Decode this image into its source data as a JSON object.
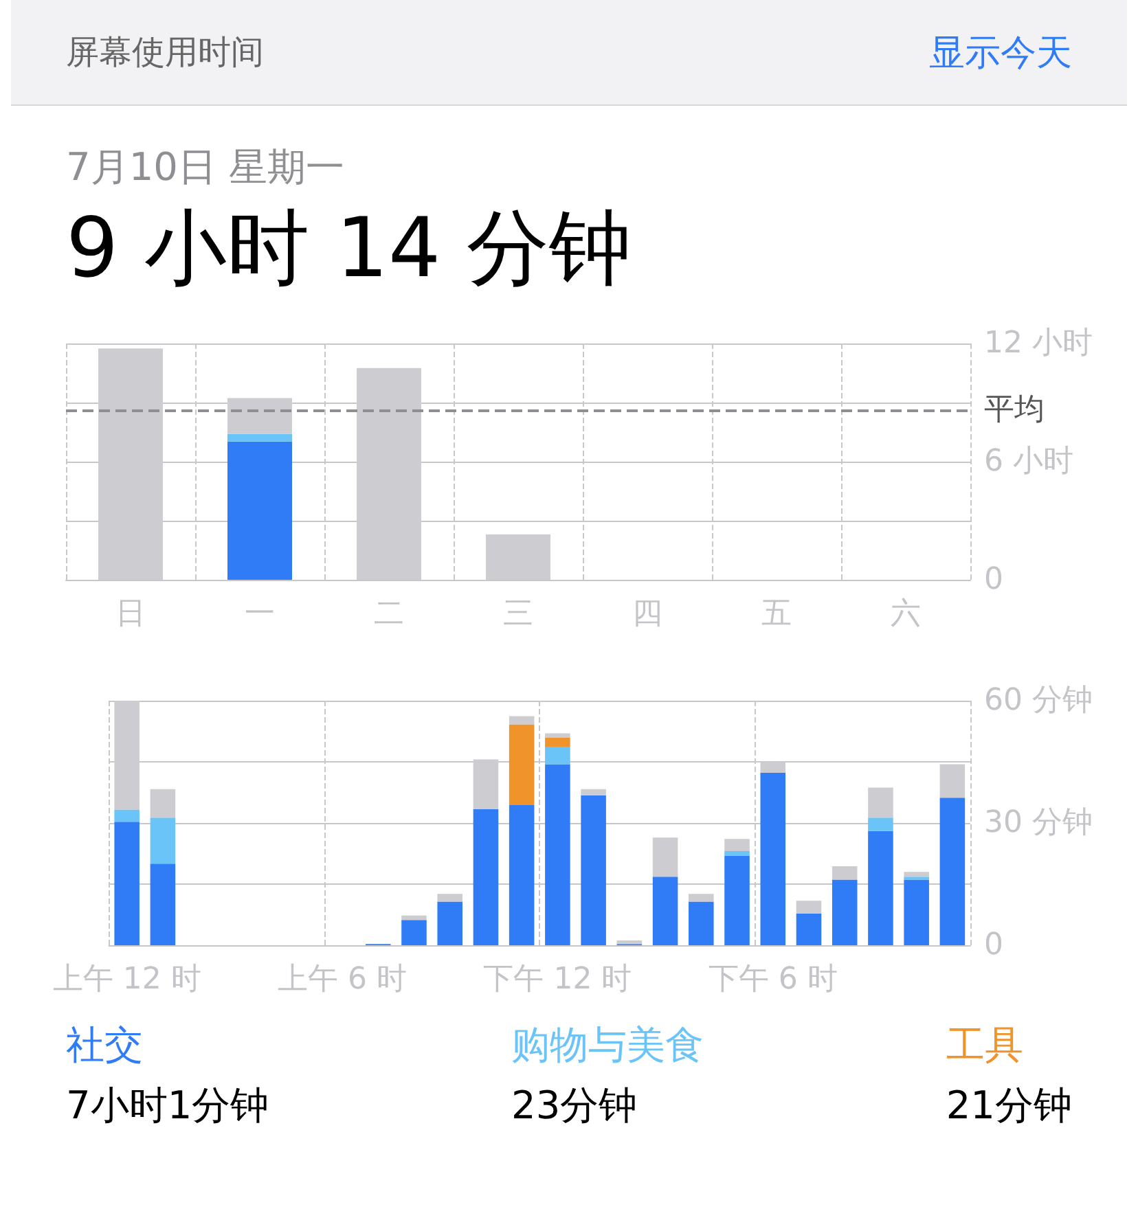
{
  "chart_data": [
    {
      "type": "bar",
      "title": "屏幕使用时间",
      "subtitle": "7月10日 星期一",
      "annotations": [
        "显示今天",
        "9 小时 14 分钟"
      ],
      "categories": [
        "日",
        "一",
        "二",
        "三",
        "四",
        "五",
        "六"
      ],
      "stacked": true,
      "series": [
        {
          "color": "#2f7cf6",
          "values": [
            null,
            7.02,
            null,
            null,
            null,
            null,
            null
          ]
        },
        {
          "color": "#6ac4f8",
          "values": [
            null,
            0.38,
            null,
            null,
            null,
            null,
            null
          ]
        },
        {
          "color": "#cdcdd1",
          "values": [
            11.75,
            1.83,
            10.75,
            2.3,
            null,
            null,
            null
          ]
        }
      ],
      "ylim": [
        0,
        12
      ],
      "yticks": [
        0,
        {
          "value": 3,
          "label": null
        },
        {
          "value": 6,
          "label": "6 小时"
        },
        {
          "value": 9,
          "label": null
        },
        {
          "value": 12,
          "label": "12 小时"
        }
      ],
      "ref_lines": [
        {
          "axis": "y",
          "value": 8.6,
          "label": "平均",
          "color": "#8e8e93",
          "line_style": "dashed"
        }
      ],
      "grid": true,
      "legend": false
    },
    {
      "type": "bar",
      "categories": [
        "上午 12 时",
        null,
        null,
        null,
        null,
        null,
        "上午 6 时",
        null,
        null,
        null,
        null,
        null,
        "下午 12 时",
        null,
        null,
        null,
        null,
        null,
        "下午 6 时",
        null,
        null,
        null,
        null,
        null
      ],
      "stacked": true,
      "series": [
        {
          "name": "社交",
          "color": "#2f7cf6",
          "values": [
            30.3,
            20,
            0,
            0,
            0,
            0,
            0,
            0.3,
            6.2,
            10.7,
            33.4,
            34.4,
            44.4,
            36.8,
            0.3,
            16.8,
            10.7,
            22,
            42.3,
            7.8,
            16.1,
            28,
            16.1,
            36.2
          ]
        },
        {
          "name": "购物与美食",
          "color": "#6ac4f8",
          "values": [
            3,
            11.3,
            0,
            0,
            0,
            0,
            0,
            0,
            0,
            0,
            0,
            0,
            4.3,
            0,
            0,
            0,
            0,
            1.1,
            0,
            0,
            0,
            3.3,
            0.7,
            0
          ]
        },
        {
          "name": "工具",
          "color": "#f0932b",
          "values": [
            0,
            0,
            0,
            0,
            0,
            0,
            0,
            0,
            0,
            0,
            0,
            19.8,
            2.2,
            0,
            0,
            0,
            0,
            0,
            0,
            0,
            0,
            0,
            0,
            0
          ]
        },
        {
          "color": "#cdcdd1",
          "values": [
            26.7,
            7,
            0,
            0,
            0,
            0,
            0,
            0,
            1.1,
            1.9,
            12.2,
            2,
            1.1,
            1.5,
            0.9,
            9.6,
            1.9,
            3,
            2.7,
            3.1,
            3.3,
            7.4,
            1.2,
            8.2
          ]
        }
      ],
      "ylim": [
        0,
        60
      ],
      "yticks": [
        0,
        {
          "value": 15,
          "label": null
        },
        {
          "value": 30,
          "label": "30 分钟"
        },
        {
          "value": 45,
          "label": null
        },
        {
          "value": 60,
          "label": "60 分钟"
        }
      ],
      "annotations": [
        "7小时1分钟",
        "23分钟",
        "21分钟"
      ],
      "grid": true,
      "legend": "bottom"
    }
  ]
}
